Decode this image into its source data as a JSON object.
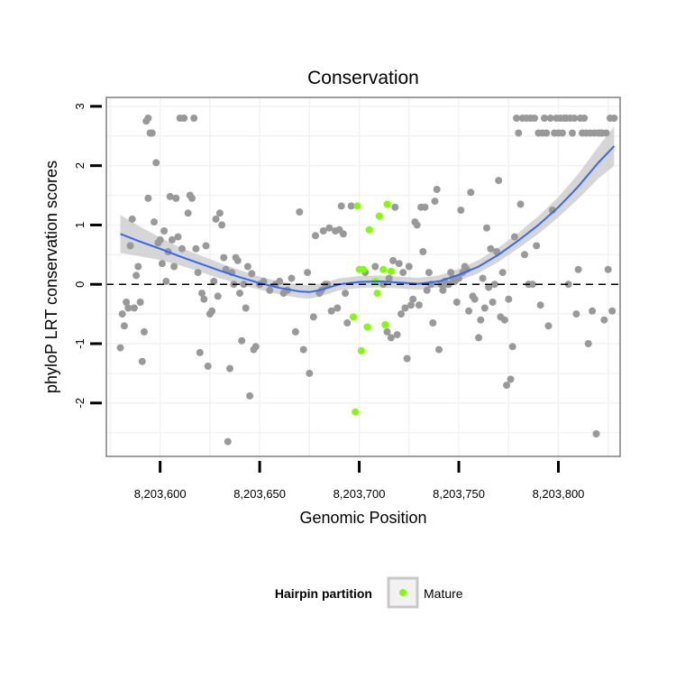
{
  "chart_data": {
    "type": "scatter",
    "title": "Conservation",
    "xlabel": "Genomic Position",
    "ylabel": "phyloP LRT conservation scores",
    "xlim": [
      8203573,
      8203831
    ],
    "ylim": [
      -2.9,
      3.15
    ],
    "x_ticks": [
      8203600,
      8203650,
      8203700,
      8203750,
      8203800
    ],
    "x_tick_labels": [
      "8,203,600",
      "8,203,650",
      "8,203,700",
      "8,203,750",
      "8,203,800"
    ],
    "y_ticks": [
      -2,
      -1,
      0,
      1,
      2,
      3
    ],
    "y_tick_labels": [
      "-2",
      "-1",
      "0",
      "1",
      "2",
      "3"
    ],
    "reference_line_y": 0,
    "grid": true,
    "legend": {
      "title": "Hairpin partition",
      "position": "bottom",
      "entries": [
        {
          "label": "Mature",
          "color": "#7fff00"
        }
      ]
    },
    "colors": {
      "points": "#999999",
      "mature": "#7fff00",
      "smooth": "#3366ff",
      "band": "#c8c8c8",
      "panel_border": "#7f7f7f",
      "grid": "#f2f2f2"
    },
    "series": [
      {
        "name": "",
        "color": "#999999",
        "points": [
          [
            8203580,
            -1.07
          ],
          [
            8203581,
            -0.5
          ],
          [
            8203582,
            -0.7
          ],
          [
            8203583,
            -0.3
          ],
          [
            8203584,
            -0.4
          ],
          [
            8203585,
            0.65
          ],
          [
            8203586,
            1.1
          ],
          [
            8203587,
            -0.4
          ],
          [
            8203588,
            0.15
          ],
          [
            8203589,
            0.3
          ],
          [
            8203590,
            -0.3
          ],
          [
            8203591,
            -1.3
          ],
          [
            8203592,
            -0.8
          ],
          [
            8203593,
            2.75
          ],
          [
            8203594,
            2.8
          ],
          [
            8203594,
            1.45
          ],
          [
            8203595,
            2.55
          ],
          [
            8203596,
            2.55
          ],
          [
            8203597,
            1.05
          ],
          [
            8203598,
            2.05
          ],
          [
            8203599,
            0.7
          ],
          [
            8203600,
            0.75
          ],
          [
            8203601,
            0.35
          ],
          [
            8203602,
            0.9
          ],
          [
            8203603,
            0.05
          ],
          [
            8203604,
            0.55
          ],
          [
            8203605,
            1.48
          ],
          [
            8203606,
            0.75
          ],
          [
            8203607,
            0.3
          ],
          [
            8203608,
            1.45
          ],
          [
            8203609,
            0.8
          ],
          [
            8203610,
            2.8
          ],
          [
            8203611,
            0.6
          ],
          [
            8203612,
            2.8
          ],
          [
            8203614,
            1.2
          ],
          [
            8203615,
            1.5
          ],
          [
            8203616,
            1.45
          ],
          [
            8203617,
            2.8
          ],
          [
            8203618,
            0.6
          ],
          [
            8203619,
            0.2
          ],
          [
            8203620,
            -1.15
          ],
          [
            8203621,
            -0.15
          ],
          [
            8203622,
            -0.25
          ],
          [
            8203623,
            0.65
          ],
          [
            8203624,
            -1.38
          ],
          [
            8203625,
            -0.5
          ],
          [
            8203626,
            -0.45
          ],
          [
            8203627,
            0.05
          ],
          [
            8203628,
            1.1
          ],
          [
            8203629,
            -0.2
          ],
          [
            8203630,
            1.2
          ],
          [
            8203631,
            1.0
          ],
          [
            8203632,
            0.45
          ],
          [
            8203633,
            0.25
          ],
          [
            8203634,
            -2.65
          ],
          [
            8203635,
            -1.42
          ],
          [
            8203636,
            0.2
          ],
          [
            8203637,
            0.0
          ],
          [
            8203638,
            0.45
          ],
          [
            8203639,
            0.4
          ],
          [
            8203640,
            -0.15
          ],
          [
            8203641,
            -0.95
          ],
          [
            8203642,
            0.0
          ],
          [
            8203643,
            -0.4
          ],
          [
            8203644,
            0.3
          ],
          [
            8203645,
            -1.88
          ],
          [
            8203646,
            0.18
          ],
          [
            8203647,
            -1.1
          ],
          [
            8203648,
            -1.05
          ],
          [
            8203650,
            0.0
          ],
          [
            8203652,
            0.05
          ],
          [
            8203655,
            -0.1
          ],
          [
            8203658,
            0.0
          ],
          [
            8203660,
            0.05
          ],
          [
            8203662,
            -0.15
          ],
          [
            8203664,
            -0.1
          ],
          [
            8203666,
            0.1
          ],
          [
            8203668,
            -0.8
          ],
          [
            8203670,
            1.22
          ],
          [
            8203672,
            -1.1
          ],
          [
            8203674,
            0.2
          ],
          [
            8203675,
            -1.5
          ],
          [
            8203677,
            -0.55
          ],
          [
            8203678,
            0.82
          ],
          [
            8203680,
            -0.15
          ],
          [
            8203681,
            -0.1
          ],
          [
            8203682,
            0.9
          ],
          [
            8203683,
            0.0
          ],
          [
            8203684,
            0.0
          ],
          [
            8203685,
            0.95
          ],
          [
            8203686,
            -0.45
          ],
          [
            8203688,
            0.9
          ],
          [
            8203689,
            -0.4
          ],
          [
            8203690,
            0.92
          ],
          [
            8203691,
            1.32
          ],
          [
            8203692,
            0.85
          ],
          [
            8203693,
            -0.15
          ],
          [
            8203694,
            -0.65
          ],
          [
            8203696,
            1.32
          ],
          [
            8203703,
            0.2
          ],
          [
            8203708,
            0.3
          ],
          [
            8203712,
            0.0
          ],
          [
            8203714,
            -0.8
          ],
          [
            8203715,
            0.1
          ],
          [
            8203716,
            -0.9
          ],
          [
            8203717,
            0.4
          ],
          [
            8203718,
            1.3
          ],
          [
            8203719,
            -0.85
          ],
          [
            8203720,
            0.35
          ],
          [
            8203721,
            -0.5
          ],
          [
            8203722,
            0.2
          ],
          [
            8203723,
            -0.4
          ],
          [
            8203724,
            -1.25
          ],
          [
            8203725,
            0.3
          ],
          [
            8203726,
            -0.35
          ],
          [
            8203727,
            -0.25
          ],
          [
            8203728,
            1.05
          ],
          [
            8203729,
            1.0
          ],
          [
            8203730,
            -0.35
          ],
          [
            8203731,
            1.3
          ],
          [
            8203732,
            0.55
          ],
          [
            8203733,
            1.3
          ],
          [
            8203734,
            -0.1
          ],
          [
            8203735,
            0.2
          ],
          [
            8203736,
            0.0
          ],
          [
            8203737,
            -0.65
          ],
          [
            8203738,
            1.4
          ],
          [
            8203739,
            1.6
          ],
          [
            8203740,
            -1.1
          ],
          [
            8203741,
            0.0
          ],
          [
            8203742,
            -0.1
          ],
          [
            8203743,
            0.05
          ],
          [
            8203744,
            0.0
          ],
          [
            8203745,
            0.0
          ],
          [
            8203746,
            0.2
          ],
          [
            8203747,
            0.1
          ],
          [
            8203748,
            0.05
          ],
          [
            8203749,
            -0.3
          ],
          [
            8203750,
            0.1
          ],
          [
            8203751,
            1.25
          ],
          [
            8203752,
            0.2
          ],
          [
            8203753,
            0.3
          ],
          [
            8203754,
            0.25
          ],
          [
            8203755,
            -0.45
          ],
          [
            8203756,
            1.55
          ],
          [
            8203757,
            -0.2
          ],
          [
            8203758,
            -0.25
          ],
          [
            8203760,
            -0.9
          ],
          [
            8203761,
            -0.6
          ],
          [
            8203762,
            0.1
          ],
          [
            8203763,
            -0.4
          ],
          [
            8203764,
            0.95
          ],
          [
            8203765,
            -0.05
          ],
          [
            8203766,
            0.6
          ],
          [
            8203767,
            -0.3
          ],
          [
            8203768,
            0.0
          ],
          [
            8203769,
            0.55
          ],
          [
            8203770,
            1.75
          ],
          [
            8203771,
            -0.55
          ],
          [
            8203772,
            0.2
          ],
          [
            8203773,
            -0.6
          ],
          [
            8203774,
            -1.7
          ],
          [
            8203775,
            -0.25
          ],
          [
            8203776,
            -1.6
          ],
          [
            8203777,
            -1.05
          ],
          [
            8203778,
            0.8
          ],
          [
            8203779,
            2.8
          ],
          [
            8203780,
            2.55
          ],
          [
            8203781,
            1.35
          ],
          [
            8203782,
            2.8
          ],
          [
            8203783,
            0.5
          ],
          [
            8203784,
            2.8
          ],
          [
            8203785,
            0.0
          ],
          [
            8203786,
            2.8
          ],
          [
            8203787,
            0.0
          ],
          [
            8203788,
            2.8
          ],
          [
            8203789,
            0.65
          ],
          [
            8203790,
            2.55
          ],
          [
            8203791,
            -0.35
          ],
          [
            8203792,
            2.55
          ],
          [
            8203793,
            2.8
          ],
          [
            8203794,
            2.55
          ],
          [
            8203795,
            -0.7
          ],
          [
            8203796,
            2.8
          ],
          [
            8203797,
            1.25
          ],
          [
            8203798,
            2.55
          ],
          [
            8203799,
            2.8
          ],
          [
            8203800,
            2.55
          ],
          [
            8203801,
            2.8
          ],
          [
            8203802,
            2.55
          ],
          [
            8203803,
            2.8
          ],
          [
            8203804,
            2.8
          ],
          [
            8203805,
            0.0
          ],
          [
            8203806,
            2.8
          ],
          [
            8203807,
            2.55
          ],
          [
            8203808,
            2.8
          ],
          [
            8203809,
            -0.5
          ],
          [
            8203810,
            0.25
          ],
          [
            8203811,
            2.8
          ],
          [
            8203812,
            2.55
          ],
          [
            8203813,
            2.8
          ],
          [
            8203814,
            2.55
          ],
          [
            8203815,
            -1.0
          ],
          [
            8203816,
            2.55
          ],
          [
            8203817,
            -0.45
          ],
          [
            8203818,
            2.55
          ],
          [
            8203819,
            -2.52
          ],
          [
            8203820,
            2.55
          ],
          [
            8203821,
            2.55
          ],
          [
            8203822,
            2.55
          ],
          [
            8203823,
            -0.6
          ],
          [
            8203824,
            2.55
          ],
          [
            8203825,
            0.25
          ],
          [
            8203826,
            2.8
          ],
          [
            8203827,
            -0.45
          ],
          [
            8203828,
            2.8
          ]
        ]
      },
      {
        "name": "Mature",
        "color": "#7fff00",
        "points": [
          [
            8203697,
            -0.55
          ],
          [
            8203698,
            -2.15
          ],
          [
            8203699,
            1.32
          ],
          [
            8203700,
            0.25
          ],
          [
            8203701,
            -1.12
          ],
          [
            8203702,
            0.25
          ],
          [
            8203704,
            -0.72
          ],
          [
            8203705,
            0.92
          ],
          [
            8203708,
            0.05
          ],
          [
            8203709,
            -0.15
          ],
          [
            8203710,
            1.15
          ],
          [
            8203712,
            0.25
          ],
          [
            8203713,
            -0.68
          ],
          [
            8203714,
            1.35
          ],
          [
            8203716,
            0.22
          ]
        ]
      }
    ],
    "smooth": {
      "x": [
        8203580,
        8203590,
        8203600,
        8203610,
        8203620,
        8203630,
        8203640,
        8203650,
        8203660,
        8203670,
        8203675,
        8203680,
        8203690,
        8203700,
        8203710,
        8203720,
        8203730,
        8203740,
        8203750,
        8203760,
        8203770,
        8203780,
        8203790,
        8203800,
        8203810,
        8203820,
        8203828
      ],
      "y": [
        0.85,
        0.72,
        0.6,
        0.47,
        0.35,
        0.23,
        0.12,
        0.02,
        -0.06,
        -0.12,
        -0.13,
        -0.1,
        0.0,
        0.04,
        0.05,
        0.03,
        0.01,
        0.05,
        0.16,
        0.3,
        0.5,
        0.74,
        1.0,
        1.3,
        1.65,
        2.05,
        2.33
      ],
      "se": [
        0.32,
        0.25,
        0.19,
        0.15,
        0.14,
        0.13,
        0.12,
        0.11,
        0.11,
        0.11,
        0.11,
        0.11,
        0.1,
        0.1,
        0.1,
        0.1,
        0.1,
        0.1,
        0.1,
        0.11,
        0.12,
        0.13,
        0.15,
        0.17,
        0.21,
        0.27,
        0.33
      ]
    }
  }
}
